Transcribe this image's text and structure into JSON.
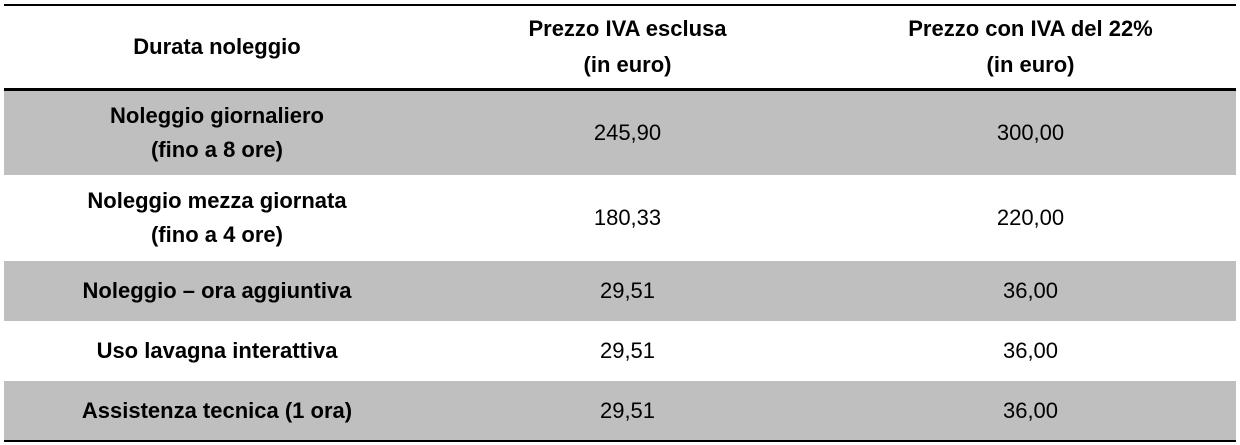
{
  "table": {
    "header": [
      [
        "Durata noleggio"
      ],
      [
        "Prezzo IVA esclusa",
        "(in euro)"
      ],
      [
        "Prezzo con IVA del 22%",
        "(in euro)"
      ]
    ],
    "rows": [
      [
        [
          "Noleggio giornaliero",
          "(fino a 8 ore)"
        ],
        "245,90",
        "300,00"
      ],
      [
        [
          "Noleggio mezza giornata",
          "(fino a 4 ore)"
        ],
        "180,33",
        "220,00"
      ],
      [
        [
          "Noleggio – ora aggiuntiva"
        ],
        "29,51",
        "36,00"
      ],
      [
        [
          "Uso lavagna interattiva"
        ],
        "29,51",
        "36,00"
      ],
      [
        [
          "Assistenza tecnica (1 ora)"
        ],
        "29,51",
        "36,00"
      ]
    ]
  }
}
